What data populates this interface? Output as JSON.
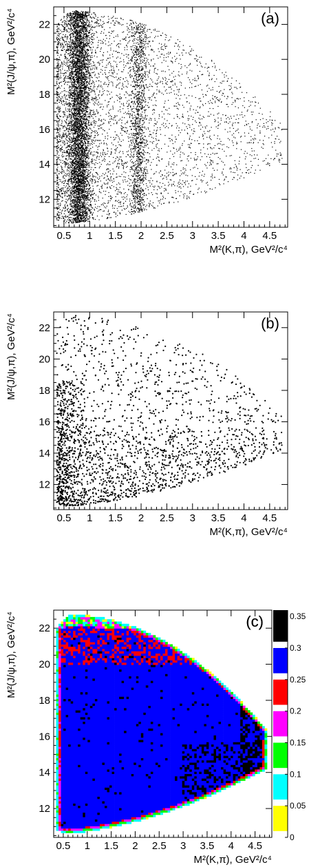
{
  "chart_data": [
    {
      "type": "scatter",
      "panel_label": "(a)",
      "xlabel": "M²(K,π), GeV²/c⁴",
      "ylabel": "M²(J/ψ,π), GeV²/c⁴",
      "xlim": [
        0.3,
        4.85
      ],
      "ylim": [
        10.4,
        23.0
      ],
      "xticks": [
        "0.5",
        "1",
        "1.5",
        "2",
        "2.5",
        "3",
        "3.5",
        "4",
        "4.5"
      ],
      "xtick_values": [
        0.5,
        1,
        1.5,
        2,
        2.5,
        3,
        3.5,
        4,
        4.5
      ],
      "yticks": [
        "12",
        "14",
        "16",
        "18",
        "20",
        "22"
      ],
      "ytick_values": [
        12,
        14,
        16,
        18,
        20,
        22
      ],
      "distribution": "very dense; strong vertical band at x≈0.8, second band at x≈1.95, sparse tail out to x≈4.75",
      "series": [
        {
          "x": [
            0.8,
            0.8,
            0.9,
            1.95,
            1.0,
            3.5,
            4.5
          ],
          "y": [
            11.5,
            17.0,
            22.0,
            16.0,
            13.0,
            16.0,
            15.5
          ]
        }
      ]
    },
    {
      "type": "scatter",
      "panel_label": "(b)",
      "xlabel": "M²(K,π), GeV²/c⁴",
      "ylabel": "M²(J/ψ,π), GeV²/c⁴",
      "xlim": [
        0.3,
        4.85
      ],
      "ylim": [
        10.4,
        23.0
      ],
      "xticks": [
        "0.5",
        "1",
        "1.5",
        "2",
        "2.5",
        "3",
        "3.5",
        "4",
        "4.5"
      ],
      "xtick_values": [
        0.5,
        1,
        1.5,
        2,
        2.5,
        3,
        3.5,
        4,
        4.5
      ],
      "yticks": [
        "12",
        "14",
        "16",
        "18",
        "20",
        "22"
      ],
      "ytick_values": [
        12,
        14,
        16,
        18,
        20,
        22
      ],
      "distribution": "moderately dense, concentrated at low M²(J/ψ,π), spread across the Dalitz region",
      "series": [
        {
          "x": [
            0.7,
            1.2,
            1.8,
            2.5,
            3.5,
            4.5
          ],
          "y": [
            11.5,
            11.0,
            12.0,
            14.0,
            16.0,
            16.0
          ]
        }
      ]
    },
    {
      "type": "heatmap",
      "panel_label": "(c)",
      "xlabel": "M²(K,π), GeV²/c⁴",
      "ylabel": "M²(J/ψ,π), GeV²/c⁴",
      "xlim": [
        0.3,
        4.85
      ],
      "ylim": [
        10.4,
        23.0
      ],
      "xticks": [
        "0.5",
        "1",
        "1.5",
        "2",
        "2.5",
        "3",
        "3.5",
        "4",
        "4.5"
      ],
      "xtick_values": [
        0.5,
        1,
        1.5,
        2,
        2.5,
        3,
        3.5,
        4,
        4.5
      ],
      "yticks": [
        "12",
        "14",
        "16",
        "18",
        "20",
        "22"
      ],
      "ytick_values": [
        12,
        14,
        16,
        18,
        20,
        22
      ],
      "zlim": [
        0,
        0.36
      ],
      "colorbar_ticks": [
        "0",
        "0.05",
        "0.1",
        "0.15",
        "0.2",
        "0.25",
        "0.3",
        "0.35"
      ],
      "colorbar_tick_values": [
        0,
        0.05,
        0.1,
        0.15,
        0.2,
        0.25,
        0.3,
        0.35
      ],
      "palette": [
        "#ffff00",
        "#00ffff",
        "#00ff00",
        "#ff00ff",
        "#ff0000",
        "#0000ff",
        "#000000"
      ],
      "palette_edges": [
        0.0,
        0.05,
        0.1,
        0.15,
        0.2,
        0.25,
        0.3,
        0.36
      ],
      "regions": [
        {
          "description": "bulk of Dalitz region",
          "value": 0.28
        },
        {
          "description": "top band, M²(J/ψ,π) ≈ 20–22.5",
          "value": 0.25
        },
        {
          "description": "bottom-left corner, M²(K,π) < 1.9 and M²(J/ψ,π) < 12.5",
          "value": 0.25
        },
        {
          "description": "lower-right edge, M²(K,π) > 3",
          "value": 0.32
        },
        {
          "description": "boundary",
          "value": 0.12
        }
      ]
    }
  ]
}
